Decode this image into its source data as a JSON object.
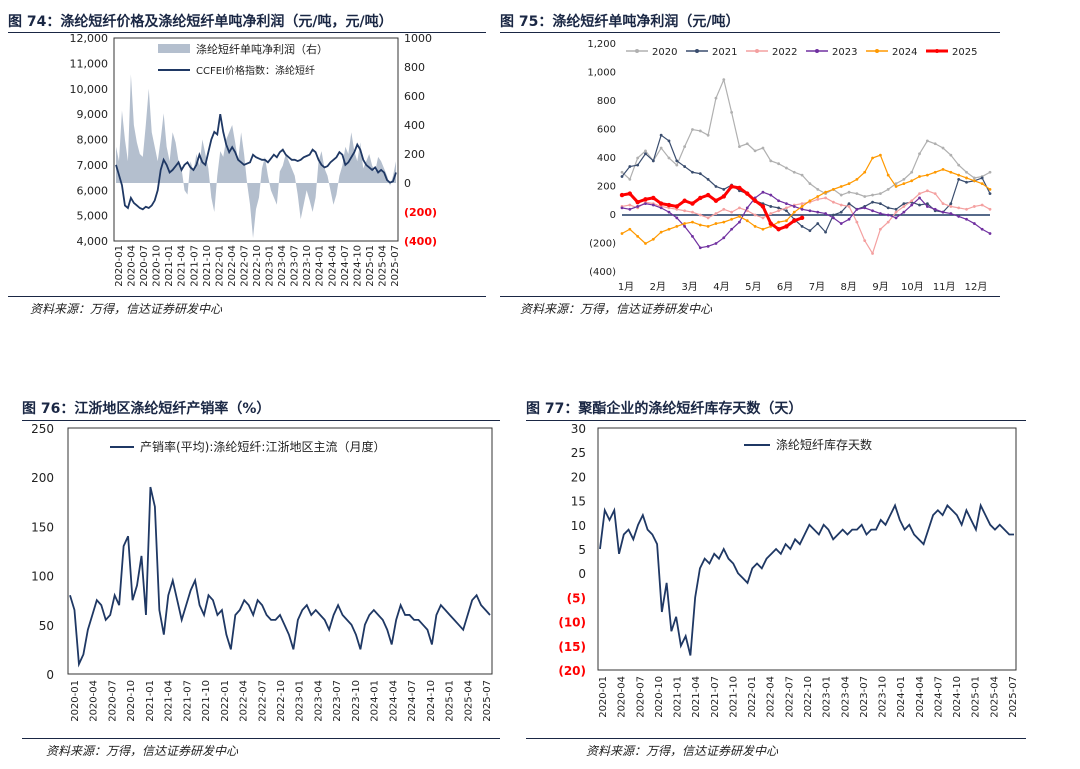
{
  "colors": {
    "navy": "#1f3864",
    "red": "#ff0000",
    "grey_area": "#b4bfce",
    "c2020": "#b0b0b0",
    "c2021": "#3a4d6e",
    "c2022": "#f4a0a0",
    "c2023": "#7030a0",
    "c2024": "#ff9900",
    "c2025": "#ff0000"
  },
  "fig74": {
    "title": "图 74：涤纶短纤价格及涤纶短纤单吨净利润（元/吨，元/吨）",
    "source": "资料来源：万得，信达证券研发中心",
    "chart_data": {
      "type": "line",
      "left_axis": {
        "ticks": [
          "12,000",
          "11,000",
          "10,000",
          "9,000",
          "8,000",
          "7,000",
          "6,000",
          "5,000",
          "4,000"
        ],
        "min": 4000,
        "max": 12000
      },
      "right_axis": {
        "ticks": [
          "1000",
          "800",
          "600",
          "400",
          "200",
          "0",
          "(200)",
          "(400)"
        ],
        "min": -400,
        "max": 1000
      },
      "x_ticks": [
        "2020-01",
        "2020-04",
        "2020-07",
        "2020-10",
        "2021-01",
        "2021-04",
        "2021-07",
        "2021-10",
        "2022-01",
        "2022-04",
        "2022-07",
        "2022-10",
        "2023-01",
        "2023-04",
        "2023-07",
        "2023-10",
        "2024-01",
        "2024-04",
        "2024-07",
        "2024-10",
        "2025-01",
        "2025-04",
        "2025-07"
      ],
      "series": [
        {
          "name": "涤纶短纤单吨净利润（右）",
          "type": "area",
          "axis": "right",
          "values": [
            250,
            150,
            500,
            300,
            150,
            750,
            400,
            280,
            200,
            180,
            400,
            650,
            350,
            250,
            150,
            300,
            480,
            250,
            150,
            350,
            280,
            150,
            100,
            -50,
            -80,
            150,
            80,
            200,
            120,
            300,
            200,
            100,
            -100,
            -200,
            50,
            220,
            180,
            300,
            350,
            400,
            280,
            150,
            350,
            200,
            0,
            -150,
            -380,
            -180,
            -100,
            100,
            180,
            50,
            -50,
            -100,
            -150,
            80,
            120,
            200,
            150,
            100,
            50,
            -80,
            -250,
            -150,
            -50,
            -120,
            -200,
            -100,
            150,
            220,
            100,
            50,
            -50,
            -150,
            -80,
            50,
            120,
            250,
            200,
            350,
            220,
            150,
            280,
            100,
            150,
            200,
            120,
            80,
            180,
            150,
            100,
            50,
            -20,
            50,
            150
          ]
        },
        {
          "name": "CCFEI价格指数：涤纶短纤",
          "type": "line",
          "axis": "left",
          "values": [
            7000,
            6600,
            6200,
            5400,
            5300,
            5700,
            5500,
            5400,
            5300,
            5250,
            5350,
            5300,
            5400,
            5600,
            6000,
            6800,
            7200,
            7000,
            6700,
            6800,
            6950,
            7100,
            6800,
            7000,
            7100,
            6900,
            6800,
            7000,
            7400,
            7100,
            7000,
            7500,
            8000,
            8300,
            8200,
            9000,
            8300,
            7800,
            7500,
            7700,
            7500,
            7200,
            7100,
            7000,
            7050,
            7100,
            7400,
            7300,
            7250,
            7200,
            7200,
            7100,
            7250,
            7400,
            7300,
            7500,
            7600,
            7400,
            7300,
            7200,
            7200,
            7150,
            7200,
            7300,
            7350,
            7400,
            7600,
            7500,
            7200,
            7000,
            6900,
            6950,
            7100,
            7200,
            7300,
            7500,
            7400,
            7000,
            7100,
            7300,
            7500,
            7800,
            7600,
            7200,
            7000,
            6900,
            6800,
            6900,
            6700,
            6800,
            6700,
            6400,
            6300,
            6350,
            6700
          ]
        }
      ]
    }
  },
  "fig75": {
    "title": "图 75：涤纶短纤单吨净利润（元/吨）",
    "chart_data": {
      "type": "line",
      "y_axis": {
        "ticks": [
          "1,200",
          "1,000",
          "800",
          "600",
          "400",
          "200",
          "0",
          "(200)",
          "(400)"
        ],
        "min": -400,
        "max": 1200
      },
      "x_ticks": [
        "1月",
        "2月",
        "3月",
        "4月",
        "5月",
        "6月",
        "7月",
        "8月",
        "9月",
        "10月",
        "11月",
        "12月"
      ],
      "series": [
        {
          "name": "2020",
          "values": [
            300,
            250,
            400,
            450,
            380,
            470,
            400,
            350,
            480,
            600,
            590,
            560,
            820,
            950,
            720,
            480,
            500,
            450,
            470,
            380,
            360,
            330,
            300,
            280,
            220,
            180,
            150,
            180,
            140,
            160,
            150,
            130,
            140,
            150,
            180,
            220,
            250,
            300,
            430,
            520,
            500,
            470,
            420,
            350,
            300,
            260,
            270,
            300
          ]
        },
        {
          "name": "2021",
          "values": [
            270,
            340,
            350,
            430,
            380,
            560,
            520,
            380,
            340,
            300,
            290,
            250,
            200,
            180,
            210,
            170,
            150,
            100,
            80,
            60,
            50,
            30,
            -30,
            -80,
            -110,
            -60,
            -120,
            0,
            20,
            80,
            40,
            60,
            90,
            80,
            50,
            40,
            80,
            90,
            70,
            80,
            30,
            20,
            80,
            250,
            230,
            240,
            260,
            150
          ]
        },
        {
          "name": "2022",
          "values": [
            60,
            70,
            50,
            90,
            80,
            60,
            50,
            40,
            30,
            20,
            0,
            -20,
            10,
            40,
            20,
            50,
            30,
            0,
            -20,
            10,
            30,
            50,
            70,
            80,
            90,
            110,
            120,
            90,
            70,
            60,
            -50,
            -180,
            -270,
            -100,
            -50,
            20,
            60,
            100,
            150,
            170,
            150,
            80,
            60,
            50,
            40,
            60,
            70,
            40
          ]
        },
        {
          "name": "2023",
          "values": [
            50,
            40,
            60,
            80,
            70,
            50,
            20,
            -20,
            -80,
            -150,
            -230,
            -220,
            -200,
            -160,
            -100,
            -50,
            50,
            120,
            160,
            140,
            100,
            80,
            60,
            40,
            30,
            20,
            10,
            -20,
            -60,
            -30,
            40,
            50,
            30,
            10,
            0,
            -20,
            20,
            70,
            120,
            60,
            40,
            20,
            10,
            -10,
            -30,
            -60,
            -100,
            -130
          ]
        },
        {
          "name": "2024",
          "values": [
            -130,
            -100,
            -150,
            -200,
            -170,
            -120,
            -100,
            -80,
            -60,
            -50,
            -70,
            -80,
            -60,
            -50,
            -30,
            -10,
            -40,
            -80,
            -100,
            -80,
            -50,
            -40,
            20,
            60,
            100,
            130,
            160,
            180,
            200,
            220,
            250,
            300,
            400,
            420,
            280,
            200,
            220,
            240,
            270,
            280,
            300,
            320,
            300,
            280,
            260,
            240,
            220,
            180
          ]
        },
        {
          "name": "2025",
          "values": [
            140,
            150,
            90,
            110,
            120,
            80,
            70,
            60,
            100,
            80,
            120,
            140,
            100,
            130,
            200,
            190,
            150,
            100,
            60,
            -60,
            -100,
            -80,
            -40,
            -20
          ]
        }
      ]
    }
  },
  "fig76": {
    "title": "图 76：江浙地区涤纶短纤产销率（%）",
    "source": "资料来源：万得，信达证券研发中心",
    "chart_data": {
      "type": "line",
      "y_axis": {
        "ticks": [
          "250",
          "200",
          "150",
          "100",
          "50",
          "0"
        ],
        "min": 0,
        "max": 250
      },
      "x_ticks": [
        "2020-01",
        "2020-04",
        "2020-07",
        "2020-10",
        "2021-01",
        "2021-04",
        "2021-07",
        "2021-10",
        "2022-01",
        "2022-04",
        "2022-07",
        "2022-10",
        "2023-01",
        "2023-04",
        "2023-07",
        "2023-10",
        "2024-01",
        "2024-04",
        "2024-07",
        "2024-10",
        "2025-01",
        "2025-04",
        "2025-07"
      ],
      "series": [
        {
          "name": "产销率(平均):涤纶短纤:江浙地区主流（月度）",
          "values": [
            80,
            65,
            10,
            20,
            45,
            60,
            75,
            70,
            55,
            60,
            80,
            70,
            130,
            140,
            75,
            90,
            120,
            60,
            190,
            170,
            65,
            40,
            80,
            95,
            75,
            55,
            70,
            85,
            95,
            70,
            60,
            80,
            75,
            60,
            65,
            40,
            25,
            60,
            65,
            75,
            70,
            60,
            75,
            70,
            60,
            55,
            55,
            60,
            50,
            40,
            25,
            55,
            65,
            70,
            60,
            65,
            60,
            55,
            45,
            60,
            70,
            60,
            55,
            50,
            40,
            25,
            50,
            60,
            65,
            60,
            55,
            45,
            30,
            55,
            70,
            60,
            60,
            55,
            55,
            50,
            45,
            30,
            60,
            70,
            65,
            60,
            55,
            50,
            45,
            60,
            75,
            80,
            70,
            65,
            60
          ]
        }
      ]
    }
  },
  "fig77": {
    "title": "图 77：聚酯企业的涤纶短纤库存天数（天）",
    "source": "资料来源：万得，信达证券研发中心",
    "chart_data": {
      "type": "line",
      "y_axis": {
        "ticks": [
          "30",
          "25",
          "20",
          "15",
          "10",
          "5",
          "0",
          "(5)",
          "(10)",
          "(15)",
          "(20)"
        ],
        "min": -20,
        "max": 30
      },
      "x_ticks": [
        "2020-01",
        "2020-04",
        "2020-07",
        "2020-10",
        "2021-01",
        "2021-04",
        "2021-07",
        "2021-10",
        "2022-01",
        "2022-04",
        "2022-07",
        "2022-10",
        "2023-01",
        "2023-04",
        "2023-07",
        "2023-10",
        "2024-01",
        "2024-04",
        "2024-07",
        "2024-10",
        "2025-01",
        "2025-04",
        "2025-07"
      ],
      "series": [
        {
          "name": "涤纶短纤库存天数",
          "values": [
            5,
            13,
            11,
            13,
            4,
            8,
            9,
            7,
            10,
            12,
            9,
            8,
            6,
            -8,
            -2,
            -12,
            -9,
            -15,
            -13,
            -17,
            -5,
            1,
            3,
            2,
            4,
            3,
            5,
            3,
            2,
            0,
            -1,
            -2,
            1,
            2,
            1,
            3,
            4,
            5,
            4,
            6,
            5,
            7,
            6,
            8,
            10,
            9,
            8,
            10,
            9,
            7,
            8,
            9,
            8,
            9,
            9,
            10,
            8,
            9,
            9,
            11,
            10,
            12,
            14,
            11,
            9,
            10,
            8,
            7,
            6,
            9,
            12,
            13,
            12,
            14,
            13,
            12,
            10,
            13,
            11,
            9,
            14,
            12,
            10,
            9,
            10,
            9,
            8,
            8
          ]
        }
      ]
    }
  }
}
